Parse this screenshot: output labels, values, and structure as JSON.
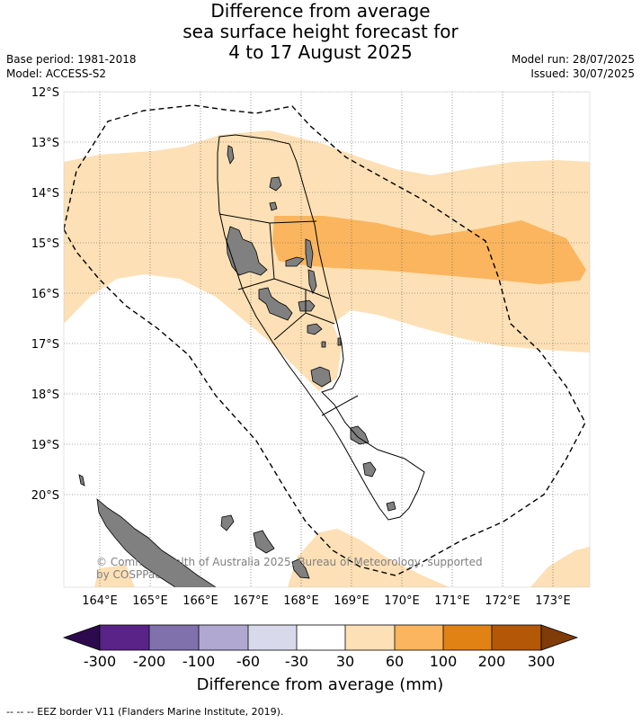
{
  "title": {
    "line1": "Difference from average",
    "line2": "sea surface height forecast for",
    "line3": "4 to 17 August 2025"
  },
  "meta_left": {
    "base_period": "Base period: 1981-2018",
    "model": "Model: ACCESS-S2"
  },
  "meta_right": {
    "model_run": "Model run: 28/07/2025",
    "issued": "Issued: 30/07/2025"
  },
  "map": {
    "lat_labels": [
      "12°S",
      "13°S",
      "14°S",
      "15°S",
      "16°S",
      "17°S",
      "18°S",
      "19°S",
      "20°S"
    ],
    "lon_labels": [
      "164°E",
      "165°E",
      "166°E",
      "167°E",
      "168°E",
      "169°E",
      "170°E",
      "171°E",
      "172°E",
      "173°E"
    ],
    "credit_line1": "© Commonwealth of Australia 2025, Bureau of Meteorology, supported",
    "credit_line2": "by COSPPac",
    "colors": {
      "land": "#808080",
      "band_30_60": "#fde0b5",
      "band_60_100": "#fbb55e"
    }
  },
  "colorbar": {
    "ticks": [
      "-300",
      "-200",
      "-100",
      "-60",
      "-30",
      "30",
      "60",
      "100",
      "200",
      "300"
    ],
    "colors": [
      "#2d0a4e",
      "#5a2388",
      "#8071ad",
      "#b1a8d1",
      "#d9d9ec",
      "#ffffff",
      "#fde0b5",
      "#fbb55e",
      "#e08214",
      "#b35806",
      "#7f3b08"
    ],
    "title": "Difference from average (mm)"
  },
  "footer": "--  --  -- EEZ border V11 (Flanders Marine Institute, 2019)."
}
